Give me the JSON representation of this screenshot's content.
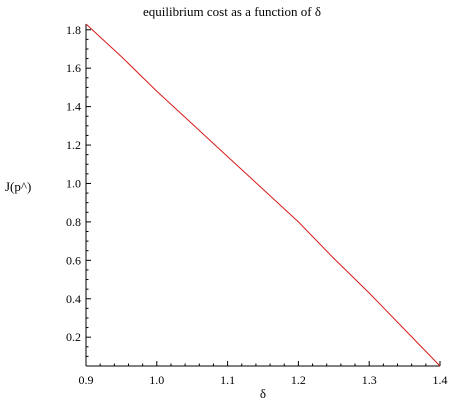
{
  "colors": {
    "background": "#ffffff",
    "axis": "#000000",
    "series_line": "#d81b1b"
  },
  "chart_data": {
    "type": "line",
    "title": "equilibrium  cost as a function of δ",
    "xlabel": "δ",
    "ylabel": "J(p^)",
    "xlim": [
      0.9,
      1.4
    ],
    "ylim": [
      0.05,
      1.83
    ],
    "grid": false,
    "x_ticks": [
      0.9,
      1.0,
      1.1,
      1.2,
      1.3,
      1.4
    ],
    "x_tick_labels": [
      "0.9",
      "1.0",
      "1.1",
      "1.2",
      "1.3",
      "1.4"
    ],
    "y_ticks": [
      0.2,
      0.4,
      0.6,
      0.8,
      1.0,
      1.2,
      1.4,
      1.6,
      1.8
    ],
    "y_tick_labels": [
      "0.2",
      "0.4",
      "0.6",
      "0.8",
      "1.0",
      "1.2",
      "1.4",
      "1.6",
      "1.8"
    ],
    "series": [
      {
        "x": [
          0.9,
          0.95,
          1.0,
          1.05,
          1.1,
          1.15,
          1.2,
          1.25,
          1.3,
          1.35,
          1.4
        ],
        "y": [
          1.83,
          1.66,
          1.48,
          1.31,
          1.14,
          0.97,
          0.8,
          0.61,
          0.43,
          0.24,
          0.05
        ]
      }
    ]
  }
}
